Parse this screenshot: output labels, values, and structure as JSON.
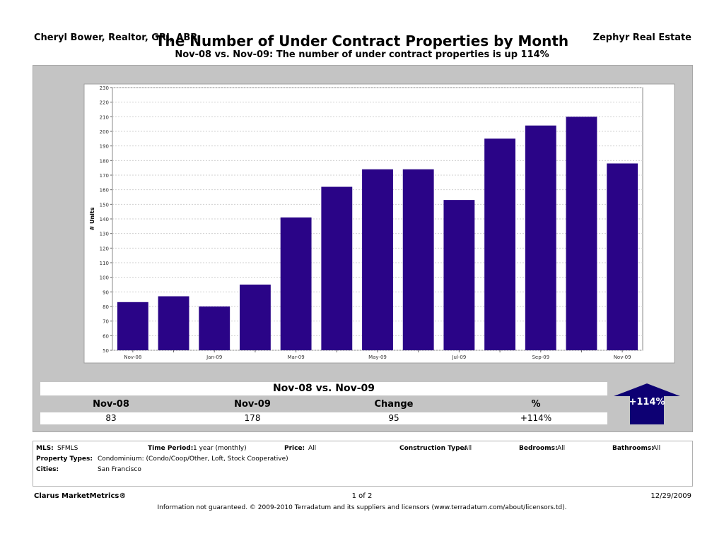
{
  "header": {
    "agent": "Cheryl Bower, Realtor, GRI, ABR",
    "company": "Zephyr Real Estate",
    "title": "The Number of Under Contract Properties by Month",
    "subtitle": "Nov-08 vs. Nov-09: The number of under contract properties is up 114%"
  },
  "chart_data": {
    "type": "bar",
    "ylabel": "# Units",
    "xlabel": "",
    "ylim": [
      50,
      230
    ],
    "yticks": [
      50,
      60,
      70,
      80,
      90,
      100,
      110,
      120,
      130,
      140,
      150,
      160,
      170,
      180,
      190,
      200,
      210,
      220,
      230
    ],
    "categories": [
      "Nov-08",
      "Dec-08",
      "Jan-09",
      "Feb-09",
      "Mar-09",
      "Apr-09",
      "May-09",
      "Jun-09",
      "Jul-09",
      "Aug-09",
      "Sep-09",
      "Oct-09",
      "Nov-09"
    ],
    "xtick_labels": [
      "Nov-08",
      "",
      "Jan-09",
      "",
      "Mar-09",
      "",
      "May-09",
      "",
      "Jul-09",
      "",
      "Sep-09",
      "",
      "Nov-09"
    ],
    "values": [
      83,
      87,
      80,
      95,
      141,
      162,
      174,
      174,
      153,
      195,
      204,
      210,
      178
    ],
    "grid": true,
    "bar_color": "#2a0487"
  },
  "summary": {
    "heading": "Nov-08 vs. Nov-09",
    "col1_label": "Nov-08",
    "col2_label": "Nov-09",
    "col3_label": "Change",
    "col4_label": "%",
    "col1_value": "83",
    "col2_value": "178",
    "col3_value": "95",
    "col4_value": "+114%",
    "arrow_label": "+114%",
    "arrow_color": "#0d0073"
  },
  "info": {
    "mls_label": "MLS:",
    "mls_value": "SFMLS",
    "time_label": "Time Period:",
    "time_value": "1 year (monthly)",
    "price_label": "Price:",
    "price_value": "All",
    "construction_label": "Construction Type:",
    "construction_value": "All",
    "bedrooms_label": "Bedrooms:",
    "bedrooms_value": "All",
    "bathrooms_label": "Bathrooms:",
    "bathrooms_value": "All",
    "property_label": "Property Types:",
    "property_value": "Condominium: (Condo/Coop/Other, Loft, Stock Cooperative)",
    "cities_label": "Cities:",
    "cities_value": "San Francisco"
  },
  "footer": {
    "brand": "Clarus MarketMetrics®",
    "page": "1 of 2",
    "date": "12/29/2009",
    "disclaimer": "Information not guaranteed.  © 2009-2010 Terradatum and its suppliers and licensors (www.terradatum.com/about/licensors.td)."
  }
}
